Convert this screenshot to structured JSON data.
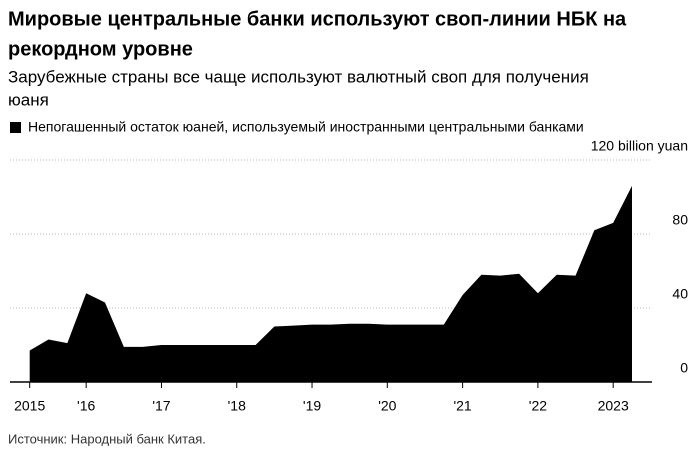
{
  "chart_data": {
    "type": "area",
    "title_lines": [
      "Мировые центральные банки используют своп-линии НБК на",
      "рекордном уровне"
    ],
    "subtitle_lines": [
      "Зарубежные страны все чаще используют валютный своп для получения",
      "юаня"
    ],
    "source": "Источник: Народный банк Китая.",
    "color": "#000000",
    "x": [
      2015.25,
      2015.5,
      2015.75,
      2016,
      2016.25,
      2016.5,
      2016.75,
      2017,
      2017.25,
      2017.5,
      2017.75,
      2018,
      2018.25,
      2018.5,
      2018.75,
      2019,
      2019.25,
      2019.5,
      2019.75,
      2020,
      2020.25,
      2020.5,
      2020.75,
      2021,
      2021.25,
      2021.5,
      2021.75,
      2022,
      2022.25,
      2022.5,
      2022.75,
      2023,
      2023.25
    ],
    "series": [
      {
        "name": "Непогашенный остаток юаней, используемый иностранными центральными банками",
        "color": "#000000",
        "values": [
          17,
          23,
          21,
          48,
          43,
          19,
          19,
          20,
          20,
          20,
          20,
          20,
          20,
          30,
          30.5,
          31,
          31,
          31.5,
          31.5,
          31,
          31,
          31,
          31,
          47,
          58,
          57.5,
          58.5,
          48,
          58,
          57.5,
          82,
          86,
          106
        ]
      }
    ],
    "xlim": [
      2015.25,
      2023.25
    ],
    "xticks": [
      {
        "value": 2015.25,
        "label": "2015"
      },
      {
        "value": 2016,
        "label": "'16"
      },
      {
        "value": 2017,
        "label": "'17"
      },
      {
        "value": 2018,
        "label": "'18"
      },
      {
        "value": 2019,
        "label": "'19"
      },
      {
        "value": 2020,
        "label": "'20"
      },
      {
        "value": 2021,
        "label": "'21"
      },
      {
        "value": 2022,
        "label": "'22"
      },
      {
        "value": 2023,
        "label": "2023"
      }
    ],
    "ylim": [
      0,
      120
    ],
    "yticks": [
      0,
      40,
      80,
      {
        "value": 120,
        "label": "120 billion yuan"
      }
    ],
    "grid": true
  }
}
